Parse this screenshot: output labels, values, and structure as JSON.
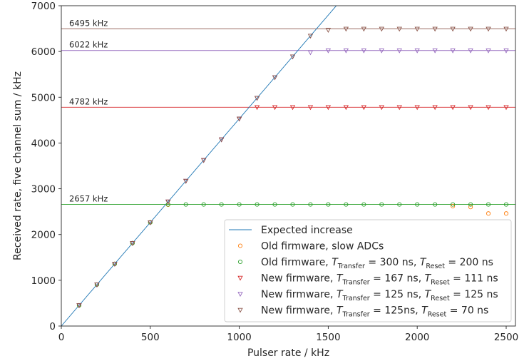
{
  "chart_data": {
    "type": "scatter",
    "xlabel": "Pulser rate / kHz",
    "ylabel": "Received rate, five channel sum / kHz",
    "xlim": [
      0,
      2550
    ],
    "ylim": [
      0,
      7000
    ],
    "xticks": [
      0,
      500,
      1000,
      1500,
      2000,
      2500
    ],
    "yticks": [
      0,
      1000,
      2000,
      3000,
      4000,
      5000,
      6000,
      7000
    ],
    "legend_position": "lower-right",
    "expected": {
      "name": "Expected increase",
      "color": "#1f77b4",
      "slope": 4.53,
      "intercept": 0
    },
    "reference_lines": [
      {
        "value": 6495,
        "label": "6495 kHz",
        "color": "#8c564b"
      },
      {
        "value": 6022,
        "label": "6022 kHz",
        "color": "#9467bd"
      },
      {
        "value": 4782,
        "label": "4782 kHz",
        "color": "#d62728"
      },
      {
        "value": 2657,
        "label": "2657 kHz",
        "color": "#2ca02c"
      }
    ],
    "series": [
      {
        "name": "Old firmware, slow ADCs",
        "marker": "circle",
        "color": "#ff7f0e",
        "x": [
          100,
          200,
          300,
          400,
          500,
          600,
          2200,
          2300,
          2400,
          2500
        ],
        "y": [
          453,
          906,
          1359,
          1812,
          2265,
          2650,
          2620,
          2600,
          2460,
          2460
        ]
      },
      {
        "name": "Old firmware, T_Transfer = 300 ns, T_Reset = 200 ns",
        "marker": "circle",
        "color": "#2ca02c",
        "x": [
          100,
          200,
          300,
          400,
          500,
          600,
          700,
          800,
          900,
          1000,
          1100,
          1200,
          1300,
          1400,
          1500,
          1600,
          1700,
          1800,
          1900,
          2000,
          2100,
          2200,
          2300,
          2400,
          2500
        ],
        "y": [
          453,
          906,
          1359,
          1812,
          2265,
          2657,
          2657,
          2657,
          2657,
          2657,
          2657,
          2657,
          2657,
          2657,
          2657,
          2657,
          2657,
          2657,
          2657,
          2657,
          2657,
          2657,
          2657,
          2657,
          2657
        ]
      },
      {
        "name": "New firmware, T_Transfer = 167 ns, T_Reset = 111 ns",
        "marker": "triangle-down",
        "color": "#d62728",
        "x": [
          100,
          200,
          300,
          400,
          500,
          600,
          700,
          800,
          900,
          1000,
          1100,
          1200,
          1300,
          1400,
          1500,
          1600,
          1700,
          1800,
          1900,
          2000,
          2100,
          2200,
          2300,
          2400,
          2500
        ],
        "y": [
          453,
          906,
          1359,
          1812,
          2265,
          2718,
          3171,
          3624,
          4077,
          4530,
          4782,
          4782,
          4782,
          4782,
          4782,
          4782,
          4782,
          4782,
          4782,
          4782,
          4782,
          4782,
          4782,
          4782,
          4782
        ]
      },
      {
        "name": "New firmware, T_Transfer = 125 ns, T_Reset = 125 ns",
        "marker": "triangle-down",
        "color": "#9467bd",
        "x": [
          100,
          200,
          300,
          400,
          500,
          600,
          700,
          800,
          900,
          1000,
          1100,
          1200,
          1300,
          1400,
          1500,
          1600,
          1700,
          1800,
          1900,
          2000,
          2100,
          2200,
          2300,
          2400,
          2500
        ],
        "y": [
          453,
          906,
          1359,
          1812,
          2265,
          2718,
          3171,
          3624,
          4077,
          4530,
          4983,
          5436,
          5889,
          5980,
          6022,
          6022,
          6022,
          6022,
          6022,
          6022,
          6022,
          6022,
          6022,
          6022,
          6022
        ]
      },
      {
        "name": "New firmware, T_Transfer = 125ns, T_Reset = 70 ns",
        "marker": "triangle-down",
        "color": "#8c564b",
        "x": [
          100,
          200,
          300,
          400,
          500,
          600,
          700,
          800,
          900,
          1000,
          1100,
          1200,
          1300,
          1400,
          1500,
          1600,
          1700,
          1800,
          1900,
          2000,
          2100,
          2200,
          2300,
          2400,
          2500
        ],
        "y": [
          453,
          906,
          1359,
          1812,
          2265,
          2718,
          3171,
          3624,
          4077,
          4530,
          4983,
          5436,
          5889,
          6342,
          6470,
          6495,
          6495,
          6495,
          6495,
          6495,
          6495,
          6495,
          6495,
          6495,
          6495
        ]
      }
    ]
  },
  "legend": {
    "items": [
      {
        "kind": "line",
        "color": "#1f77b4",
        "text": "Expected increase"
      },
      {
        "kind": "circle",
        "color": "#ff7f0e",
        "text": "Old firmware, slow ADCs"
      },
      {
        "kind": "circle",
        "color": "#2ca02c",
        "pre": "Old firmware, ",
        "t1": "300 ns, ",
        "t2": "200 ns"
      },
      {
        "kind": "triangle",
        "color": "#d62728",
        "pre": "New firmware, ",
        "t1": "167 ns, ",
        "t2": "111 ns"
      },
      {
        "kind": "triangle",
        "color": "#9467bd",
        "pre": "New firmware, ",
        "t1": "125 ns, ",
        "t2": "125 ns"
      },
      {
        "kind": "triangle",
        "color": "#8c564b",
        "pre": "New firmware, ",
        "t1": "125ns, ",
        "t2": "70 ns"
      }
    ],
    "sym_T": "T",
    "sub_transfer": "Transfer",
    "sub_reset": "Reset",
    "eq": " = "
  }
}
